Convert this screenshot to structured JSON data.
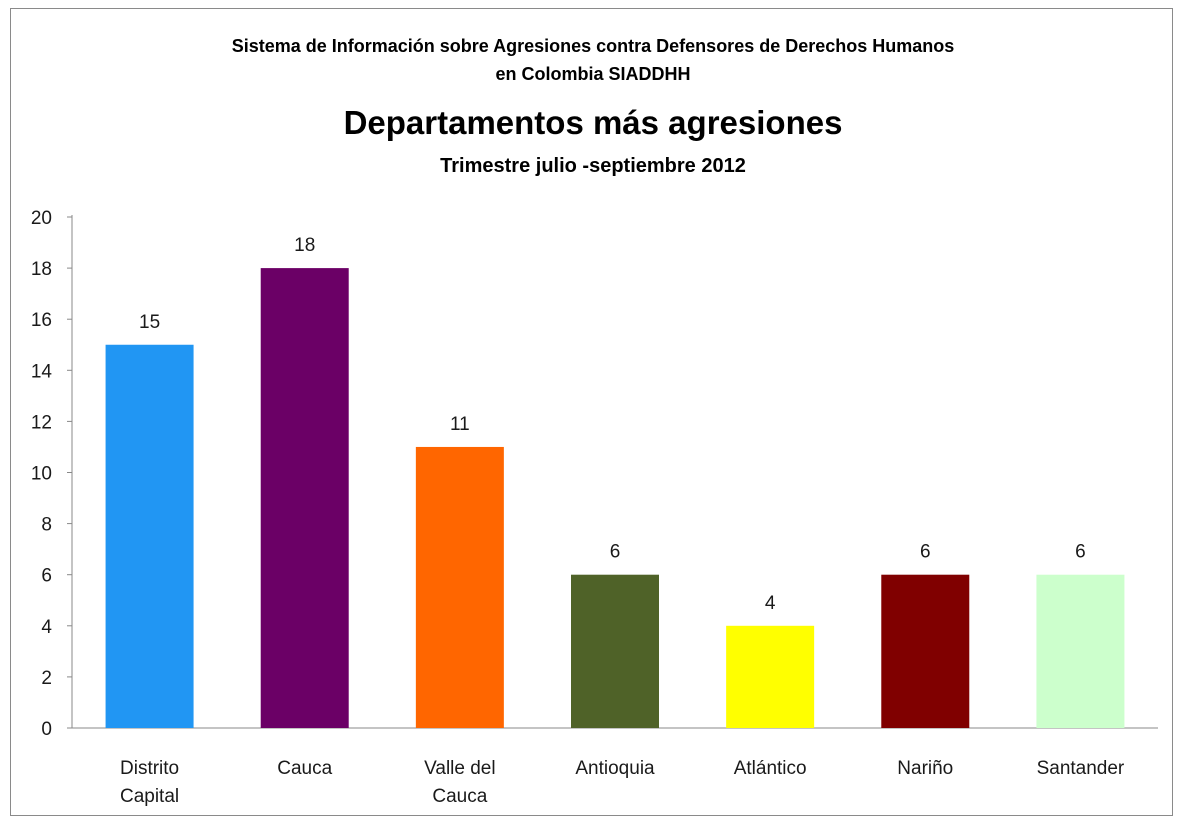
{
  "chart_data": {
    "type": "bar",
    "header": [
      "Sistema de Información sobre Agresiones contra Defensores de Derechos Humanos",
      "en Colombia SIADDHH"
    ],
    "title": "Departamentos más agresiones",
    "subtitle": "Trimestre julio -septiembre 2012",
    "xlabel": "",
    "ylabel": "",
    "ylim": [
      0,
      20
    ],
    "yticks": [
      0,
      2,
      4,
      6,
      8,
      10,
      12,
      14,
      16,
      18,
      20
    ],
    "grid": false,
    "legend": "none",
    "categories": [
      [
        "Distrito",
        "Capital"
      ],
      [
        "Cauca"
      ],
      [
        "Valle del",
        "Cauca"
      ],
      [
        "Antioquia"
      ],
      [
        "Atlántico"
      ],
      [
        "Nariño"
      ],
      [
        "Santander"
      ]
    ],
    "values": [
      15,
      18,
      11,
      6,
      4,
      6,
      6
    ],
    "colors": [
      "#2196F3",
      "#6B0066",
      "#FF6600",
      "#4F6228",
      "#FFFF00",
      "#800000",
      "#CCFFCC"
    ]
  }
}
